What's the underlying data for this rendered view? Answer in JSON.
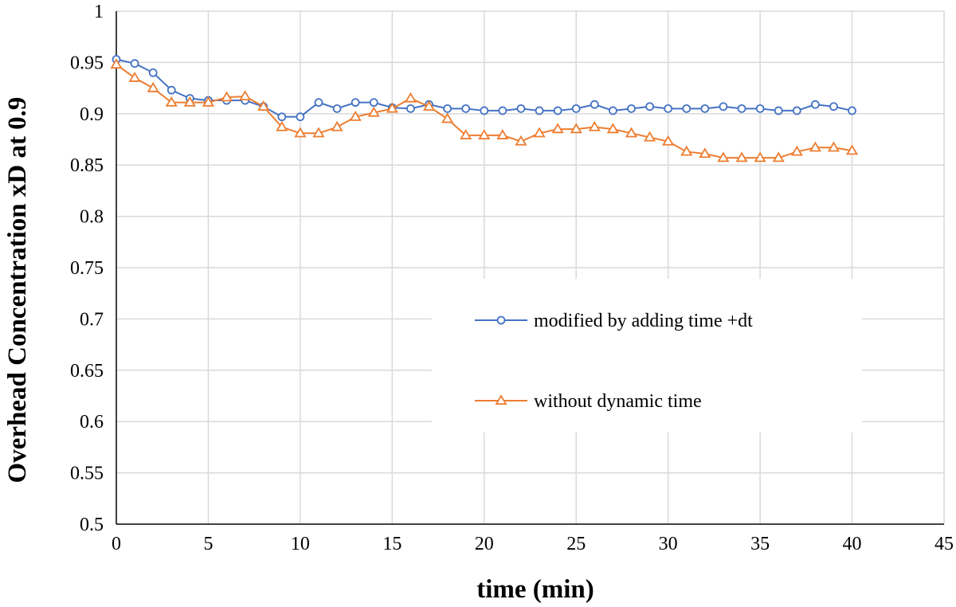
{
  "chart_data": {
    "type": "line",
    "xlabel": "time (min)",
    "ylabel": "Overhead Concentration  xD at 0.9",
    "xlim": [
      0,
      45
    ],
    "ylim": [
      0.5,
      1
    ],
    "x_ticks": [
      "0",
      "5",
      "10",
      "15",
      "20",
      "25",
      "30",
      "35",
      "40",
      "45"
    ],
    "y_ticks": [
      "0.5",
      "0.55",
      "0.6",
      "0.65",
      "0.7",
      "0.75",
      "0.8",
      "0.85",
      "0.9",
      "0.95",
      "1"
    ],
    "grid": true,
    "legend_position": "center-right",
    "x": [
      0,
      1,
      2,
      3,
      4,
      5,
      6,
      7,
      8,
      9,
      10,
      11,
      12,
      13,
      14,
      15,
      16,
      17,
      18,
      19,
      20,
      21,
      22,
      23,
      24,
      25,
      26,
      27,
      28,
      29,
      30,
      31,
      32,
      33,
      34,
      35,
      36,
      37,
      38,
      39,
      40
    ],
    "series": [
      {
        "name": "modified by adding time +dt",
        "color": "#4472c4",
        "marker": "circle",
        "values": [
          0.953,
          0.949,
          0.94,
          0.923,
          0.915,
          0.913,
          0.913,
          0.913,
          0.907,
          0.897,
          0.897,
          0.911,
          0.905,
          0.911,
          0.911,
          0.906,
          0.905,
          0.909,
          0.905,
          0.905,
          0.903,
          0.903,
          0.905,
          0.903,
          0.903,
          0.905,
          0.909,
          0.903,
          0.905,
          0.907,
          0.905,
          0.905,
          0.905,
          0.907,
          0.905,
          0.905,
          0.903,
          0.903,
          0.909,
          0.907,
          0.903
        ]
      },
      {
        "name": "without dynamic time",
        "color": "#ed7d31",
        "marker": "triangle",
        "values": [
          0.948,
          0.935,
          0.925,
          0.911,
          0.911,
          0.911,
          0.916,
          0.917,
          0.907,
          0.887,
          0.881,
          0.881,
          0.887,
          0.897,
          0.901,
          0.905,
          0.915,
          0.907,
          0.895,
          0.879,
          0.879,
          0.879,
          0.873,
          0.881,
          0.885,
          0.885,
          0.887,
          0.885,
          0.881,
          0.877,
          0.873,
          0.863,
          0.861,
          0.857,
          0.857,
          0.857,
          0.857,
          0.863,
          0.867,
          0.867,
          0.864
        ]
      }
    ]
  }
}
